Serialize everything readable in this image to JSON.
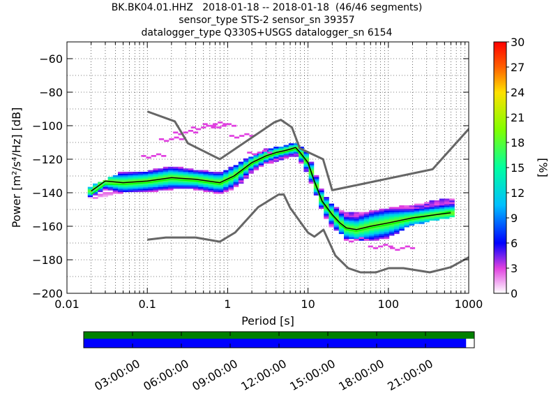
{
  "chart_data": {
    "type": "heatmap",
    "title": [
      "BK.BK04.01.HHZ   2018-01-18 -- 2018-01-18  (46/46 segments)",
      "sensor_type STS-2 sensor_sn 39357",
      "datalogger_type Q330S+USGS datalogger_sn 6154"
    ],
    "xlabel": "Period [s]",
    "ylabel": "Power [m²/s⁴/Hz] [dB]",
    "xscale": "log",
    "xlim": [
      0.01,
      1000
    ],
    "ylim": [
      -200,
      -50
    ],
    "x_ticks": [
      "0.01",
      "0.1",
      "1",
      "10",
      "100",
      "1000"
    ],
    "y_ticks": [
      "−60",
      "−80",
      "−100",
      "−120",
      "−140",
      "−160",
      "−180",
      "−200"
    ],
    "colorbar": {
      "label": "[%]",
      "ticks": [
        "0",
        "3",
        "6",
        "9",
        "12",
        "15",
        "18",
        "21",
        "24",
        "27",
        "30"
      ],
      "range": [
        0,
        30
      ]
    },
    "grid": true,
    "noise_model_high": {
      "x": [
        0.1,
        0.22,
        0.32,
        0.8,
        3.8,
        4.6,
        6.3,
        7.9,
        15.4,
        20,
        354.8,
        10000
      ],
      "y": [
        -91.5,
        -97.4,
        -110.5,
        -120,
        -98,
        -96.5,
        -101,
        -113.5,
        -120,
        -138.5,
        -126,
        -48.5
      ]
    },
    "noise_model_low": {
      "x": [
        0.1,
        0.17,
        0.4,
        0.8,
        1.24,
        2.4,
        4.3,
        5,
        6,
        10,
        12,
        15.6,
        21.9,
        31.6,
        45,
        70,
        101,
        154,
        328,
        600,
        10000
      ],
      "y": [
        -168,
        -166.7,
        -166.7,
        -169.2,
        -163.7,
        -148.6,
        -141.1,
        -141.1,
        -149,
        -163.8,
        -166.2,
        -162.1,
        -177.5,
        -185,
        -187.5,
        -187.5,
        -185,
        -185,
        -187.5,
        -184.4,
        -151.9
      ]
    },
    "mode_curve": {
      "x": [
        0.02,
        0.03,
        0.05,
        0.1,
        0.2,
        0.4,
        0.8,
        1.2,
        2,
        3,
        4,
        5,
        6,
        7,
        8,
        10,
        12,
        15,
        20,
        25,
        30,
        40,
        60,
        100,
        200,
        400,
        600
      ],
      "y": [
        -139,
        -133,
        -134,
        -133,
        -131,
        -132,
        -134,
        -130,
        -122,
        -118,
        -116,
        -115,
        -114,
        -113,
        -116,
        -122,
        -133,
        -145,
        -153,
        -158,
        -161,
        -162,
        -160,
        -158,
        -155,
        -153,
        -152
      ]
    },
    "mean_curve": {
      "x": [
        0.02,
        0.03,
        0.05,
        0.1,
        0.2,
        0.4,
        0.8,
        1.2,
        2,
        3,
        4,
        5,
        6,
        7,
        8,
        10,
        12,
        15,
        20,
        25,
        30,
        40,
        60,
        100,
        200,
        400,
        600
      ],
      "y": [
        -141,
        -135,
        -135,
        -134,
        -132,
        -133,
        -135,
        -131,
        -123,
        -119,
        -117,
        -116,
        -115,
        -114,
        -117,
        -123,
        -134,
        -146,
        -154,
        -159,
        -162,
        -163,
        -161,
        -159,
        -156,
        -153,
        -151
      ]
    },
    "spread": {
      "x": [
        0.02,
        0.05,
        0.1,
        0.2,
        0.4,
        0.8,
        1.2,
        2,
        3,
        5,
        7,
        10,
        15,
        20,
        30,
        60,
        100,
        200,
        600
      ],
      "low": [
        -143,
        -139,
        -139,
        -137,
        -137,
        -140,
        -137,
        -127,
        -122,
        -119,
        -117,
        -128,
        -150,
        -160,
        -166,
        -168,
        -166,
        -158,
        -154
      ],
      "high": [
        -137,
        -128,
        -128,
        -125,
        -127,
        -129,
        -125,
        -119,
        -115,
        -113,
        -111,
        -117,
        -140,
        -148,
        -153,
        -152,
        -150,
        -148,
        -144
      ]
    },
    "outliers": {
      "x": [
        0.12,
        0.2,
        0.3,
        0.5,
        0.7,
        0.9,
        1.5,
        2.5,
        40,
        80,
        150
      ],
      "y": [
        -118,
        -108,
        -104,
        -101,
        -99,
        -100,
        -106,
        -116,
        -168,
        -172,
        -173
      ]
    }
  },
  "timeline": {
    "labels": [
      "03:00:00",
      "06:00:00",
      "09:00:00",
      "12:00:00",
      "15:00:00",
      "18:00:00",
      "21:00:00"
    ],
    "top_color": "#008000",
    "bottom_color": "#0000ff",
    "coverage": 0.979
  },
  "colors": {
    "noise_models": "#666666",
    "mode": "#000000",
    "mean": "#00ff00",
    "background_cell": "#ffffff"
  }
}
